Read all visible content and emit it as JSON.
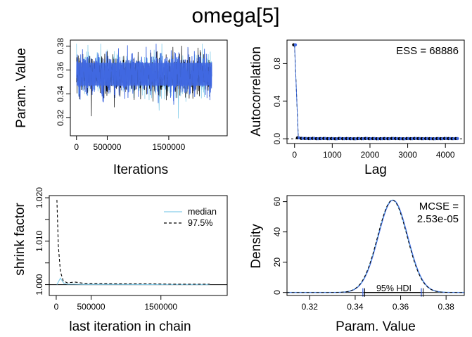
{
  "title": "omega[5]",
  "colors": {
    "line": "#87ceeb",
    "dash": "#000000",
    "chain": "#4169e1",
    "acf_black": "#000000"
  },
  "chart_data": [
    {
      "type": "line",
      "panel": "trace",
      "xlabel": "Iterations",
      "ylabel": "Param. Value",
      "xlim": [
        -100000,
        2450000
      ],
      "ylim": [
        0.305,
        0.385
      ],
      "xticks": [
        0,
        500000,
        1500000
      ],
      "xtick_labels": [
        "0",
        "500000",
        "1500000"
      ],
      "yticks": [
        0.32,
        0.34,
        0.36,
        0.38
      ],
      "ytick_labels": [
        "0.32",
        "0.34",
        "0.36",
        "0.38"
      ],
      "band": {
        "x_start": 0,
        "x_end": 2200000,
        "center": 0.356,
        "q_low": 0.347,
        "q_high": 0.366,
        "min": 0.312,
        "max": 0.382
      }
    },
    {
      "type": "scatter",
      "panel": "autocorrelation",
      "xlabel": "Lag",
      "ylabel": "Autocorrelation",
      "xlim": [
        -200,
        4500
      ],
      "ylim": [
        -0.05,
        1.05
      ],
      "xticks": [
        0,
        1000,
        2000,
        3000,
        4000
      ],
      "xtick_labels": [
        "0",
        "1000",
        "2000",
        "3000",
        "4000"
      ],
      "yticks": [
        0.0,
        0.4,
        0.8
      ],
      "ytick_labels": [
        "0.0",
        "0.4",
        "0.8"
      ],
      "annotation": "ESS = 68886",
      "x": [
        0,
        100,
        200,
        300,
        400,
        500,
        600,
        700,
        800,
        900,
        1000,
        1100,
        1200,
        1300,
        1400,
        1500,
        1600,
        1700,
        1800,
        1900,
        2000,
        2100,
        2200,
        2300,
        2400,
        2500,
        2600,
        2700,
        2800,
        2900,
        3000,
        3100,
        3200,
        3300,
        3400,
        3500,
        3600,
        3700,
        3800,
        3900,
        4000,
        4100,
        4200,
        4300
      ],
      "y": [
        1.0,
        0.01,
        0.005,
        0.004,
        0.003,
        0.005,
        0.002,
        0.003,
        0.004,
        0.002,
        0.003,
        0.001,
        0.004,
        0.002,
        0.003,
        0.002,
        0.001,
        0.003,
        0.002,
        0.004,
        0.002,
        0.003,
        0.001,
        0.002,
        0.003,
        0.002,
        0.004,
        0.003,
        0.002,
        0.001,
        0.003,
        0.002,
        0.004,
        0.003,
        0.002,
        0.003,
        0.002,
        0.001,
        0.003,
        0.002,
        0.004,
        0.003,
        0.002,
        0.003
      ]
    },
    {
      "type": "line",
      "panel": "shrink",
      "xlabel": "last iteration in chain",
      "ylabel": "shrink factor",
      "xlim": [
        -100000,
        2450000
      ],
      "ylim": [
        0.9975,
        1.0205
      ],
      "xticks": [
        0,
        500000,
        1500000
      ],
      "xtick_labels": [
        "0",
        "500000",
        "1500000"
      ],
      "yticks": [
        1.0,
        1.005,
        1.01,
        1.015,
        1.02
      ],
      "ytick_labels": [
        "1.000",
        "",
        "1.010",
        "",
        "1.020"
      ],
      "series": [
        {
          "name": "median",
          "x": [
            10000,
            60000,
            110000,
            160000,
            260000,
            400000,
            600000,
            900000,
            1300000,
            1700000,
            2100000,
            2200000
          ],
          "y": [
            1.0,
            1.0015,
            1.0003,
            1.0001,
            1.0001,
            1.00005,
            1.00005,
            1.00005,
            1.00002,
            1.00002,
            1.00001,
            1.00001
          ]
        },
        {
          "name": "97.5%",
          "x": [
            10000,
            30000,
            60000,
            100000,
            160000,
            260000,
            400000,
            600000,
            900000,
            1300000,
            1700000,
            2100000,
            2200000
          ],
          "y": [
            1.0195,
            1.009,
            1.003,
            1.0009,
            1.0004,
            1.0006,
            1.0003,
            1.0003,
            1.0002,
            1.0002,
            1.0001,
            1.0001,
            1.0001
          ]
        }
      ]
    },
    {
      "type": "area",
      "panel": "density",
      "xlabel": "Param. Value",
      "ylabel": "Density",
      "xlim": [
        0.31,
        0.388
      ],
      "ylim": [
        -2,
        64
      ],
      "xticks": [
        0.32,
        0.34,
        0.36,
        0.38
      ],
      "xtick_labels": [
        "0.32",
        "0.34",
        "0.36",
        "0.38"
      ],
      "yticks": [
        0,
        20,
        40,
        60
      ],
      "ytick_labels": [
        "0",
        "20",
        "40",
        "60"
      ],
      "mean": 0.3565,
      "sd": 0.0065,
      "peak": 61,
      "hdi_low": 0.3438,
      "hdi_high": 0.3695,
      "hdi_label": "95% HDI",
      "annotation": [
        "MCSE =",
        "2.53e-05"
      ]
    }
  ]
}
